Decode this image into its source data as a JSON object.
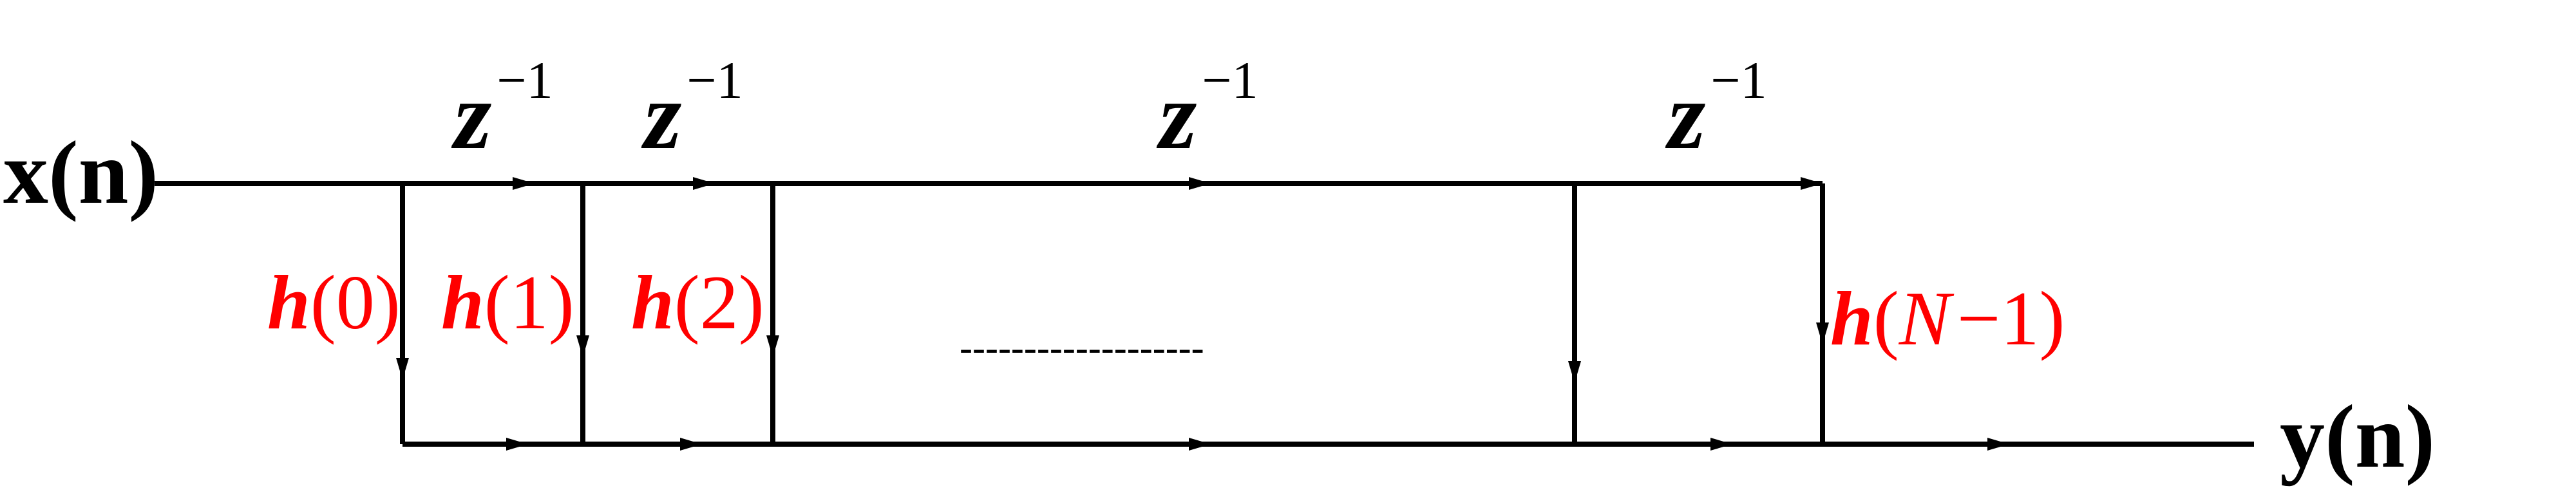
{
  "input_label": "x(n)",
  "output_label": "y(n)",
  "delays": [
    {
      "base": "z",
      "exponent": "−1"
    },
    {
      "base": "z",
      "exponent": "−1"
    },
    {
      "base": "z",
      "exponent": "−1"
    },
    {
      "base": "z",
      "exponent": "−1"
    }
  ],
  "coefficients": [
    {
      "symbol": "h",
      "open": "(",
      "arg": "0",
      "close": ")"
    },
    {
      "symbol": "h",
      "open": "(",
      "arg": "1",
      "close": ")"
    },
    {
      "symbol": "h",
      "open": "(",
      "arg": "2",
      "close": ")"
    },
    {
      "symbol": "h",
      "open": "(",
      "arg_var": "N",
      "arg_rest": "−1",
      "close": ")"
    }
  ],
  "ellipsis": "-------------------",
  "colors": {
    "line": "#000000",
    "coefficient": "#ff0000"
  }
}
